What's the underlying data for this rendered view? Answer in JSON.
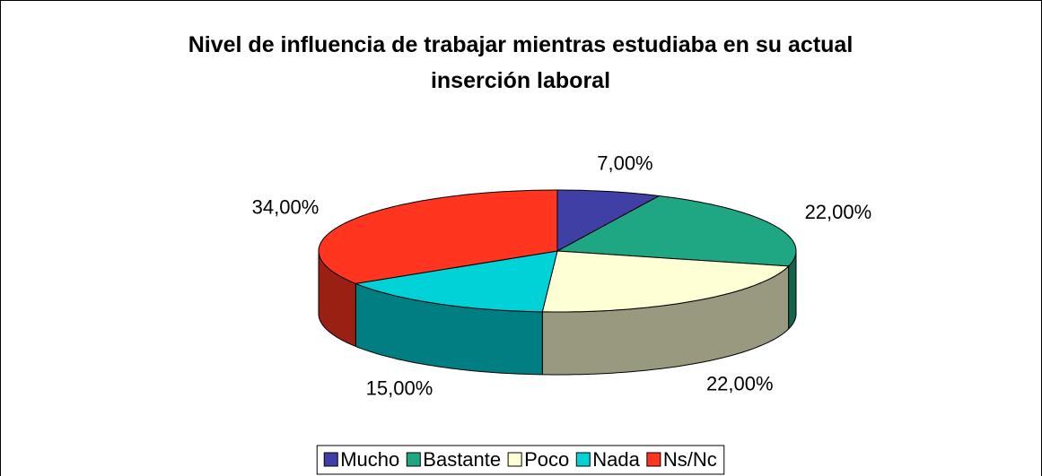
{
  "chart_data": {
    "type": "pie3d",
    "title": "Nivel de influencia de trabajar mientras estudiaba en su actual inserción laboral",
    "categories": [
      "Mucho",
      "Bastante",
      "Poco",
      "Nada",
      "Ns/Nc"
    ],
    "values": [
      7,
      22,
      22,
      15,
      34
    ],
    "value_labels": [
      "7,00%",
      "22,00%",
      "22,00%",
      "15,00%",
      "34,00%"
    ],
    "colors": [
      "#3f3fa6",
      "#1fa682",
      "#ffffd6",
      "#00d2d8",
      "#ff3520"
    ],
    "legend": "bottom"
  }
}
